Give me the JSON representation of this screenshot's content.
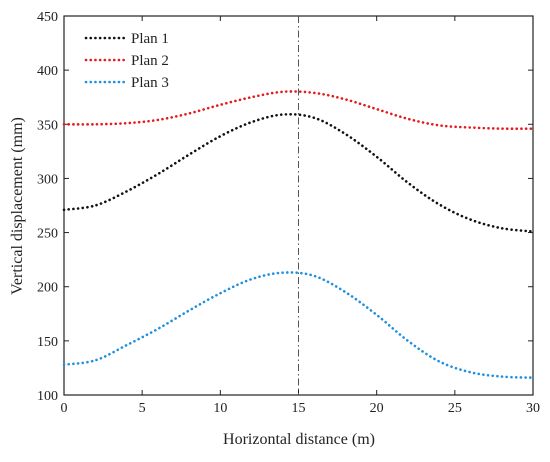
{
  "chart_data": {
    "type": "line",
    "xlabel": "Horizontal distance (m)",
    "ylabel": "Vertical displacement (mm)",
    "xlim": [
      0,
      30
    ],
    "ylim": [
      100,
      450
    ],
    "xticks": [
      0,
      5,
      10,
      15,
      20,
      25,
      30
    ],
    "yticks": [
      100,
      150,
      200,
      250,
      300,
      350,
      400,
      450
    ],
    "grid": false,
    "legend_position": "top-left",
    "vertical_reference_line": {
      "x": 15,
      "style": "dash-dot",
      "color": "#555555"
    },
    "series": [
      {
        "name": "Plan 1",
        "color": "#111111",
        "style": "dotted",
        "x": [
          0,
          2,
          4,
          6,
          8,
          10,
          12,
          14,
          16,
          18,
          20,
          22,
          24,
          26,
          28,
          30
        ],
        "y": [
          271,
          275,
          288,
          304,
          322,
          339,
          352,
          359,
          356,
          341,
          320,
          296,
          276,
          262,
          254,
          251
        ]
      },
      {
        "name": "Plan 2",
        "color": "#e41a1c",
        "style": "dotted",
        "x": [
          0,
          2,
          4,
          6,
          8,
          10,
          12,
          14,
          16,
          18,
          20,
          22,
          24,
          26,
          28,
          30
        ],
        "y": [
          350,
          350,
          351,
          354,
          360,
          368,
          375,
          380,
          379,
          373,
          364,
          355,
          349,
          347,
          346,
          346
        ]
      },
      {
        "name": "Plan 3",
        "color": "#1f8fe0",
        "style": "dotted",
        "x": [
          0,
          2,
          4,
          6,
          8,
          10,
          12,
          14,
          16,
          18,
          20,
          22,
          24,
          26,
          28,
          30
        ],
        "y": [
          128,
          132,
          146,
          161,
          178,
          194,
          207,
          213,
          210,
          195,
          174,
          150,
          131,
          121,
          117,
          116
        ]
      }
    ]
  }
}
